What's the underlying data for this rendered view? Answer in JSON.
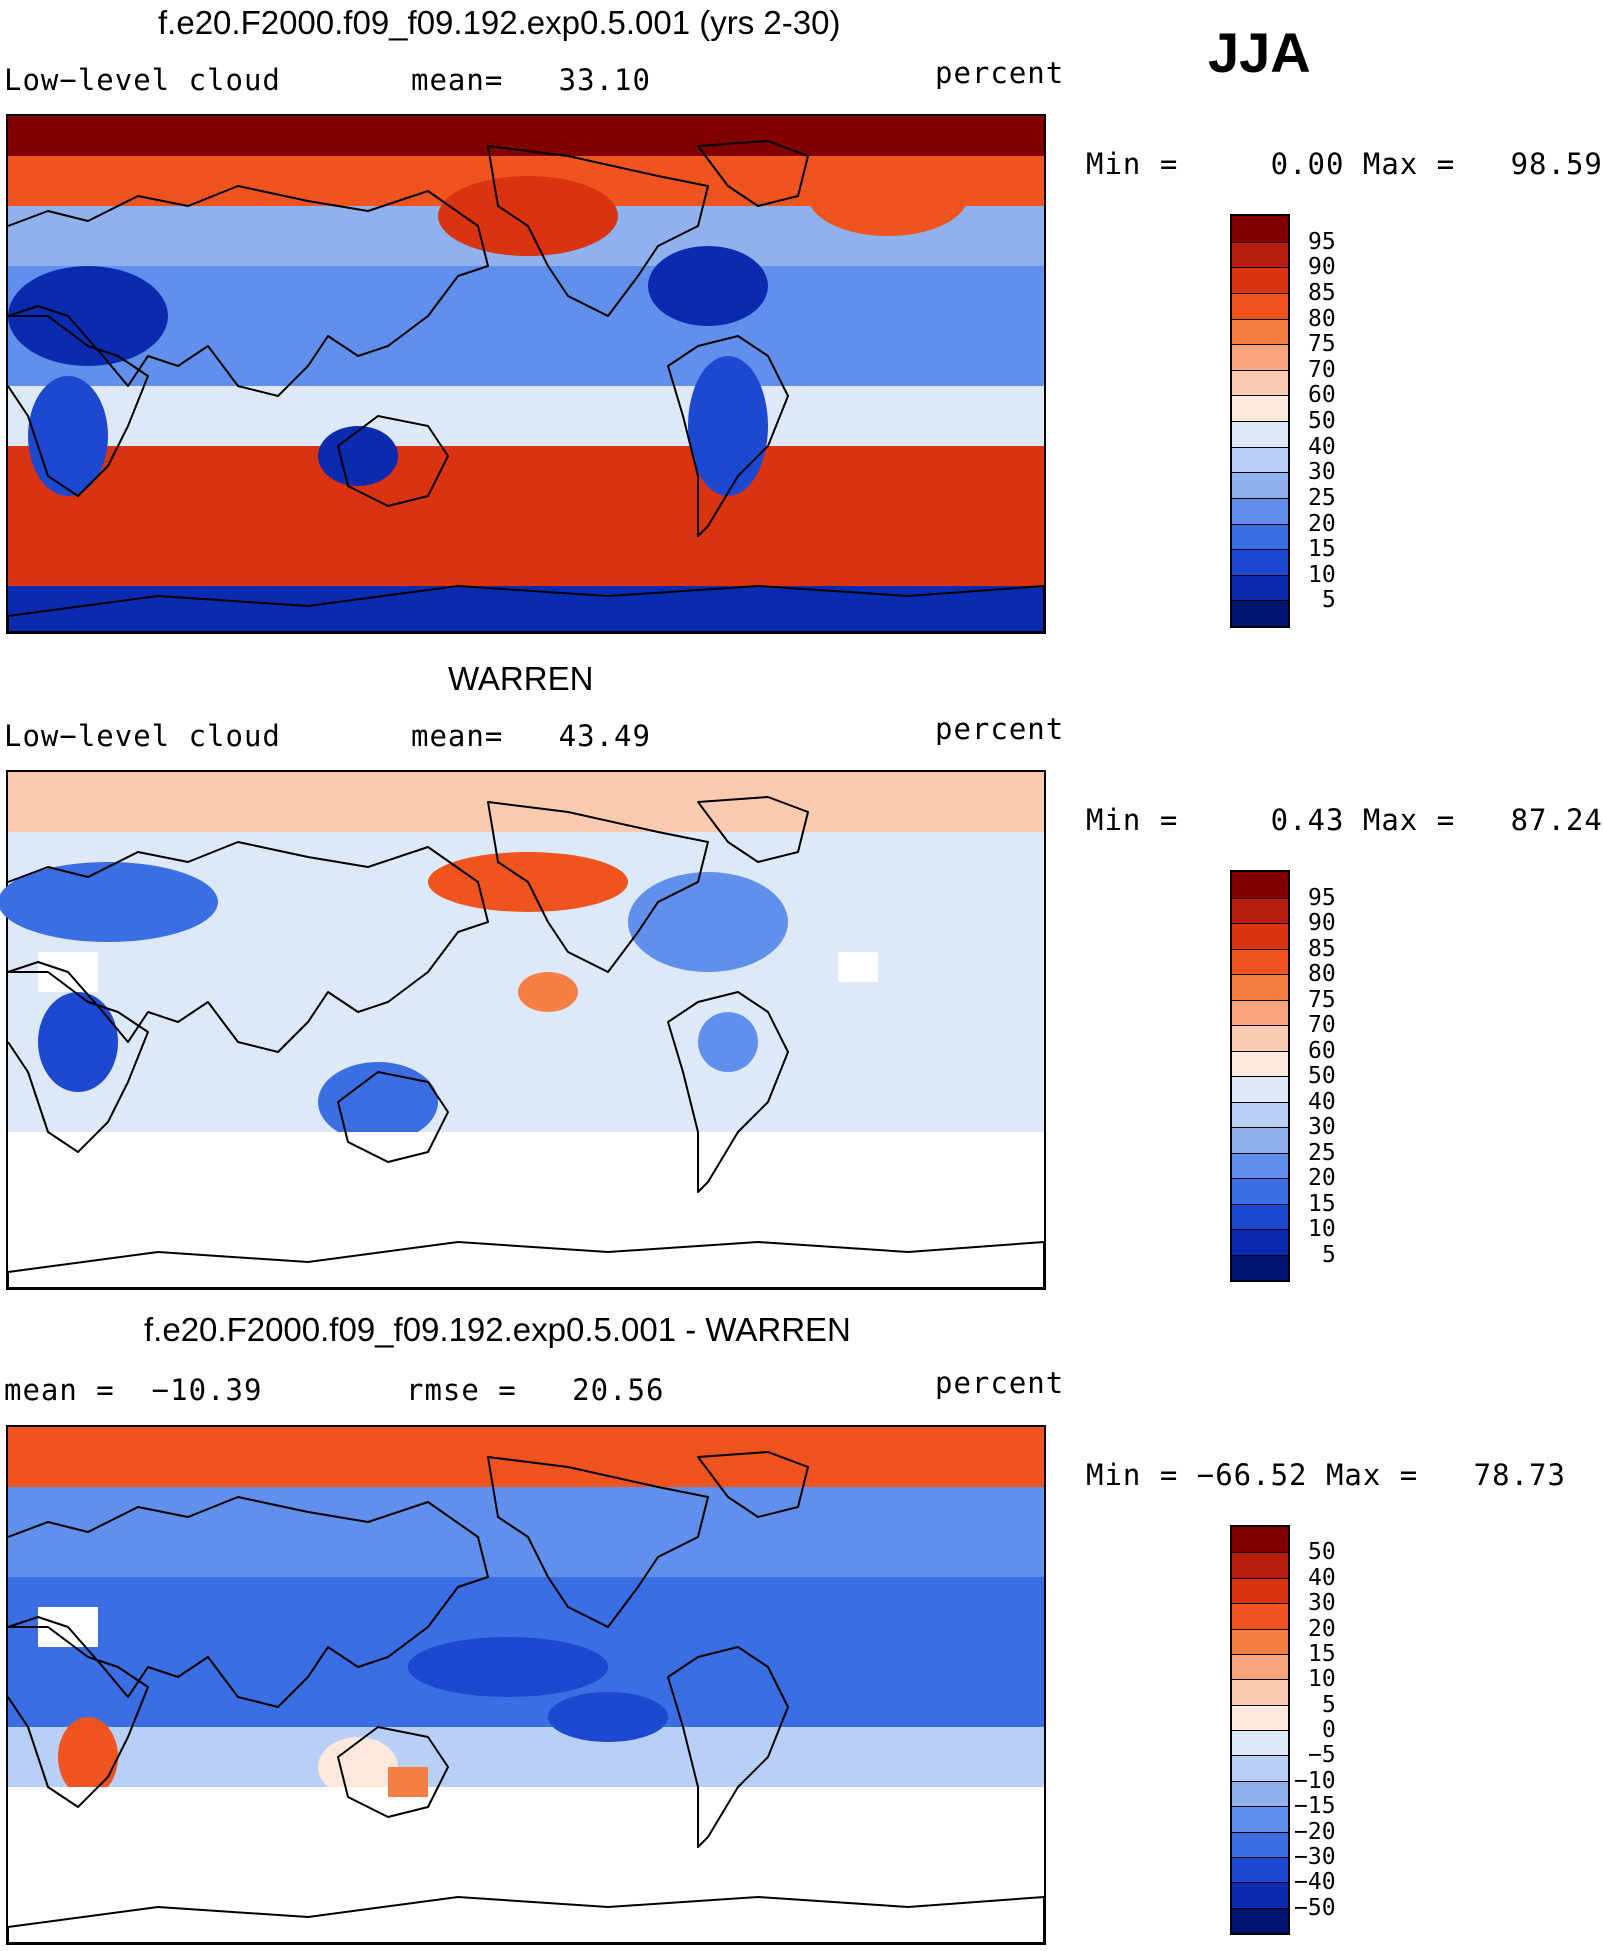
{
  "season": "JJA",
  "panels": [
    {
      "title": "f.e20.F2000.f09_f09.192.exp0.5.001 (yrs 2-30)",
      "left_label": "Low−level cloud",
      "mid_label": "mean=   33.10",
      "units": "percent",
      "minmax": "Min =     0.00 Max =   98.59",
      "colorbar": {
        "levels": [
          "95",
          "90",
          "85",
          "80",
          "75",
          "70",
          "60",
          "50",
          "40",
          "30",
          "25",
          "20",
          "15",
          "10",
          "5"
        ],
        "colors": [
          "#800000",
          "#b71c0c",
          "#d9330f",
          "#f0541e",
          "#f57f45",
          "#f9a67e",
          "#fbcbaf",
          "#fde9dc",
          "#dde9f9",
          "#b8d0f5",
          "#8fb2ef",
          "#6090eb",
          "#3b6de3",
          "#1d48d0",
          "#0a2ab0",
          "#001470"
        ]
      },
      "map_style": "model"
    },
    {
      "title": "WARREN",
      "left_label": "Low−level cloud",
      "mid_label": "mean=   43.49",
      "units": "percent",
      "minmax": "Min =     0.43 Max =   87.24",
      "colorbar": {
        "levels": [
          "95",
          "90",
          "85",
          "80",
          "75",
          "70",
          "60",
          "50",
          "40",
          "30",
          "25",
          "20",
          "15",
          "10",
          "5"
        ],
        "colors": [
          "#800000",
          "#b71c0c",
          "#d9330f",
          "#f0541e",
          "#f57f45",
          "#f9a67e",
          "#fbcbaf",
          "#fde9dc",
          "#dde9f9",
          "#b8d0f5",
          "#8fb2ef",
          "#6090eb",
          "#3b6de3",
          "#1d48d0",
          "#0a2ab0",
          "#001470"
        ]
      },
      "map_style": "obs"
    },
    {
      "title": "f.e20.F2000.f09_f09.192.exp0.5.001 - WARREN",
      "left_label": "mean =  −10.39",
      "mid_label": "rmse =   20.56",
      "units": "percent",
      "minmax": "Min = −66.52 Max =   78.73",
      "colorbar": {
        "levels": [
          "50",
          "40",
          "30",
          "20",
          "15",
          "10",
          "5",
          "0",
          "−5",
          "−10",
          "−15",
          "−20",
          "−30",
          "−40",
          "−50"
        ],
        "colors": [
          "#800000",
          "#b71c0c",
          "#d9330f",
          "#f0541e",
          "#f57f45",
          "#f9a67e",
          "#fbcbaf",
          "#fde9dc",
          "#dde9f9",
          "#b8d0f5",
          "#8fb2ef",
          "#6090eb",
          "#3b6de3",
          "#1d48d0",
          "#0a2ab0",
          "#001470"
        ]
      },
      "map_style": "diff"
    }
  ]
}
